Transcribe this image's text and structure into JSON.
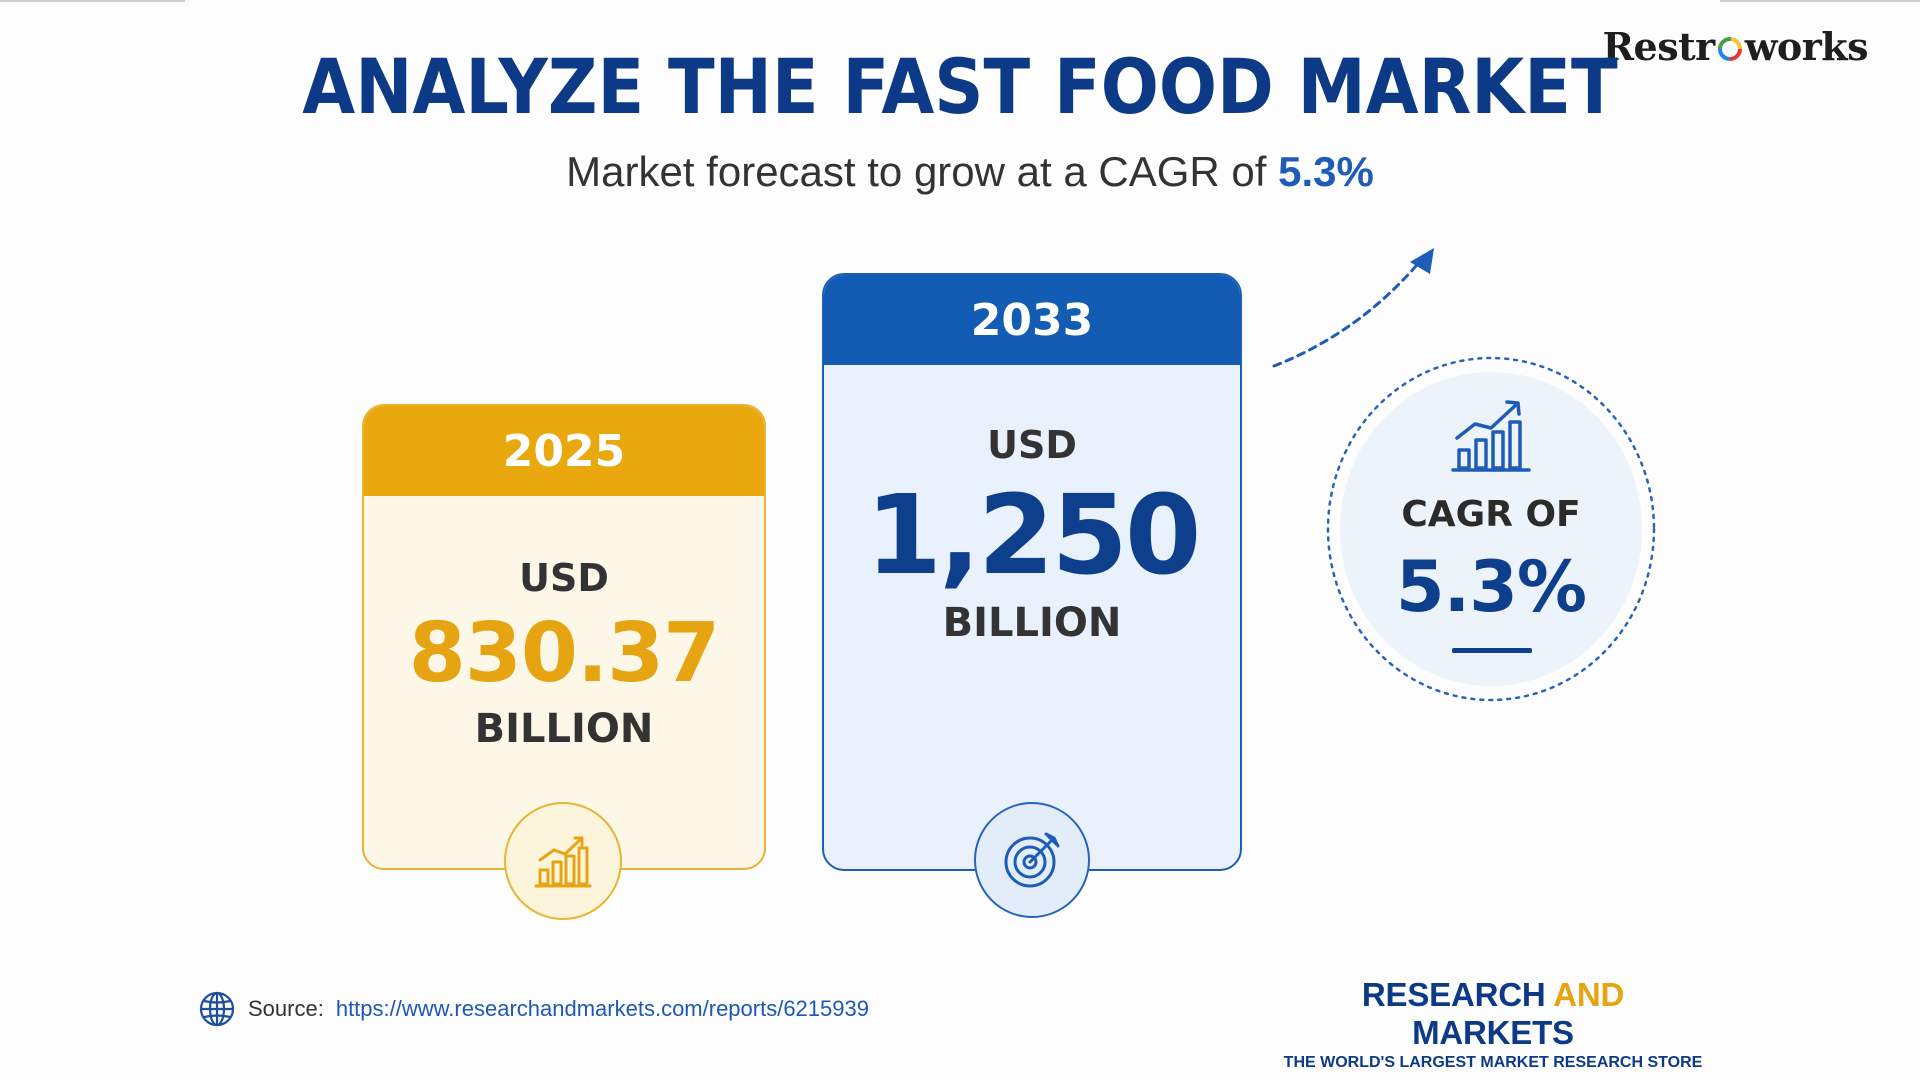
{
  "brand": {
    "name_left": "Restr",
    "name_right": "works"
  },
  "header": {
    "title": "ANALYZE THE FAST FOOD MARKET",
    "subtitle_prefix": "Market forecast to grow at a CAGR of",
    "subtitle_value": "5.3%"
  },
  "cards": [
    {
      "year": "2025",
      "currency": "USD",
      "value": "830.37",
      "unit": "BILLION",
      "icon": "bar-chart-growth-icon",
      "color": "#e9a80e"
    },
    {
      "year": "2033",
      "currency": "USD",
      "value": "1,250",
      "unit": "BILLION",
      "icon": "target-arrow-icon",
      "color": "#135cb4"
    }
  ],
  "cagr": {
    "label": "CAGR OF",
    "value": "5.3%",
    "icon": "bar-chart-growth-icon"
  },
  "source": {
    "label": "Source:",
    "url": "https://www.researchandmarkets.com/reports/6215939",
    "icon": "globe-icon"
  },
  "publisher": {
    "name_part1": "RESEARCH",
    "name_and": "AND",
    "name_part2": "MARKETS",
    "tagline": "THE WORLD'S LARGEST MARKET RESEARCH STORE"
  }
}
